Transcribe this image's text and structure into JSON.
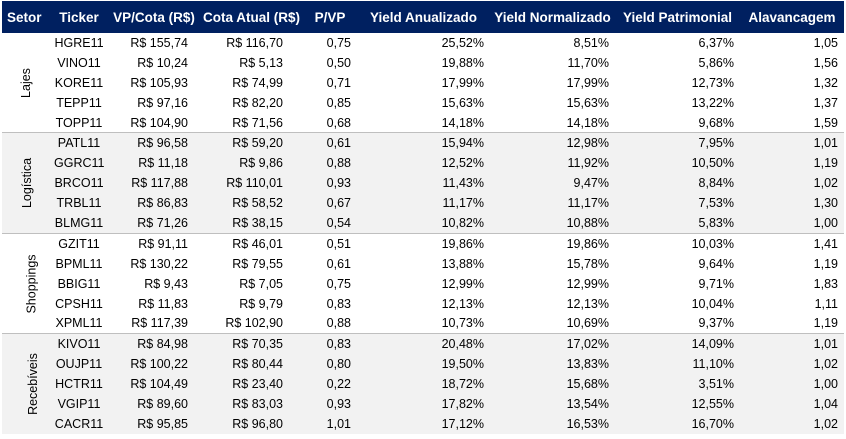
{
  "headers": [
    "Setor",
    "Ticker",
    "VP/Cota (R$)",
    "Cota Atual (R$)",
    "P/VP",
    "Yield Anualizado",
    "Yield Normalizado",
    "Yield Patrimonial",
    "Alavancagem"
  ],
  "sectors": [
    {
      "name": "Lajes",
      "rows": [
        [
          "HGRE11",
          "R$ 155,74",
          "R$ 116,70",
          "0,75",
          "25,52%",
          "8,51%",
          "6,37%",
          "1,05"
        ],
        [
          "VINO11",
          "R$ 10,24",
          "R$ 5,13",
          "0,50",
          "19,88%",
          "11,70%",
          "5,86%",
          "1,56"
        ],
        [
          "KORE11",
          "R$ 105,93",
          "R$ 74,99",
          "0,71",
          "17,99%",
          "17,99%",
          "12,73%",
          "1,32"
        ],
        [
          "TEPP11",
          "R$ 97,16",
          "R$ 82,20",
          "0,85",
          "15,63%",
          "15,63%",
          "13,22%",
          "1,37"
        ],
        [
          "TOPP11",
          "R$ 104,90",
          "R$ 71,56",
          "0,68",
          "14,18%",
          "14,18%",
          "9,68%",
          "1,59"
        ]
      ]
    },
    {
      "name": "Logística",
      "rows": [
        [
          "PATL11",
          "R$ 96,58",
          "R$ 59,20",
          "0,61",
          "15,94%",
          "12,98%",
          "7,95%",
          "1,01"
        ],
        [
          "GGRC11",
          "R$ 11,18",
          "R$ 9,86",
          "0,88",
          "12,52%",
          "11,92%",
          "10,50%",
          "1,19"
        ],
        [
          "BRCO11",
          "R$ 117,88",
          "R$ 110,01",
          "0,93",
          "11,43%",
          "9,47%",
          "8,84%",
          "1,02"
        ],
        [
          "TRBL11",
          "R$ 86,83",
          "R$ 58,52",
          "0,67",
          "11,17%",
          "11,17%",
          "7,53%",
          "1,30"
        ],
        [
          "BLMG11",
          "R$ 71,26",
          "R$ 38,15",
          "0,54",
          "10,82%",
          "10,88%",
          "5,83%",
          "1,00"
        ]
      ]
    },
    {
      "name": "Shoppings",
      "rows": [
        [
          "GZIT11",
          "R$ 91,11",
          "R$ 46,01",
          "0,51",
          "19,86%",
          "19,86%",
          "10,03%",
          "1,41"
        ],
        [
          "BPML11",
          "R$ 130,22",
          "R$ 79,55",
          "0,61",
          "13,88%",
          "15,78%",
          "9,64%",
          "1,19"
        ],
        [
          "BBIG11",
          "R$ 9,43",
          "R$ 7,05",
          "0,75",
          "12,99%",
          "12,99%",
          "9,71%",
          "1,83"
        ],
        [
          "CPSH11",
          "R$ 11,83",
          "R$ 9,79",
          "0,83",
          "12,13%",
          "12,13%",
          "10,04%",
          "1,11"
        ],
        [
          "XPML11",
          "R$ 117,39",
          "R$ 102,90",
          "0,88",
          "10,73%",
          "10,69%",
          "9,37%",
          "1,19"
        ]
      ]
    },
    {
      "name": "Recebíveis",
      "rows": [
        [
          "KIVO11",
          "R$ 84,98",
          "R$ 70,35",
          "0,83",
          "20,48%",
          "17,02%",
          "14,09%",
          "1,01"
        ],
        [
          "OUJP11",
          "R$ 100,22",
          "R$ 80,44",
          "0,80",
          "19,50%",
          "13,83%",
          "11,10%",
          "1,02"
        ],
        [
          "HCTR11",
          "R$ 104,49",
          "R$ 23,40",
          "0,22",
          "18,72%",
          "15,68%",
          "3,51%",
          "1,00"
        ],
        [
          "VGIP11",
          "R$ 89,60",
          "R$ 83,03",
          "0,93",
          "17,82%",
          "13,54%",
          "12,55%",
          "1,04"
        ],
        [
          "CACR11",
          "R$ 95,85",
          "R$ 96,80",
          "1,01",
          "17,12%",
          "16,53%",
          "16,70%",
          "1,02"
        ]
      ]
    }
  ],
  "colors": {
    "header_bg": "#002060",
    "header_text": "#ffffff",
    "shaded_group_bg": "#f2f2f2",
    "group_divider": "#bfbfbf"
  }
}
